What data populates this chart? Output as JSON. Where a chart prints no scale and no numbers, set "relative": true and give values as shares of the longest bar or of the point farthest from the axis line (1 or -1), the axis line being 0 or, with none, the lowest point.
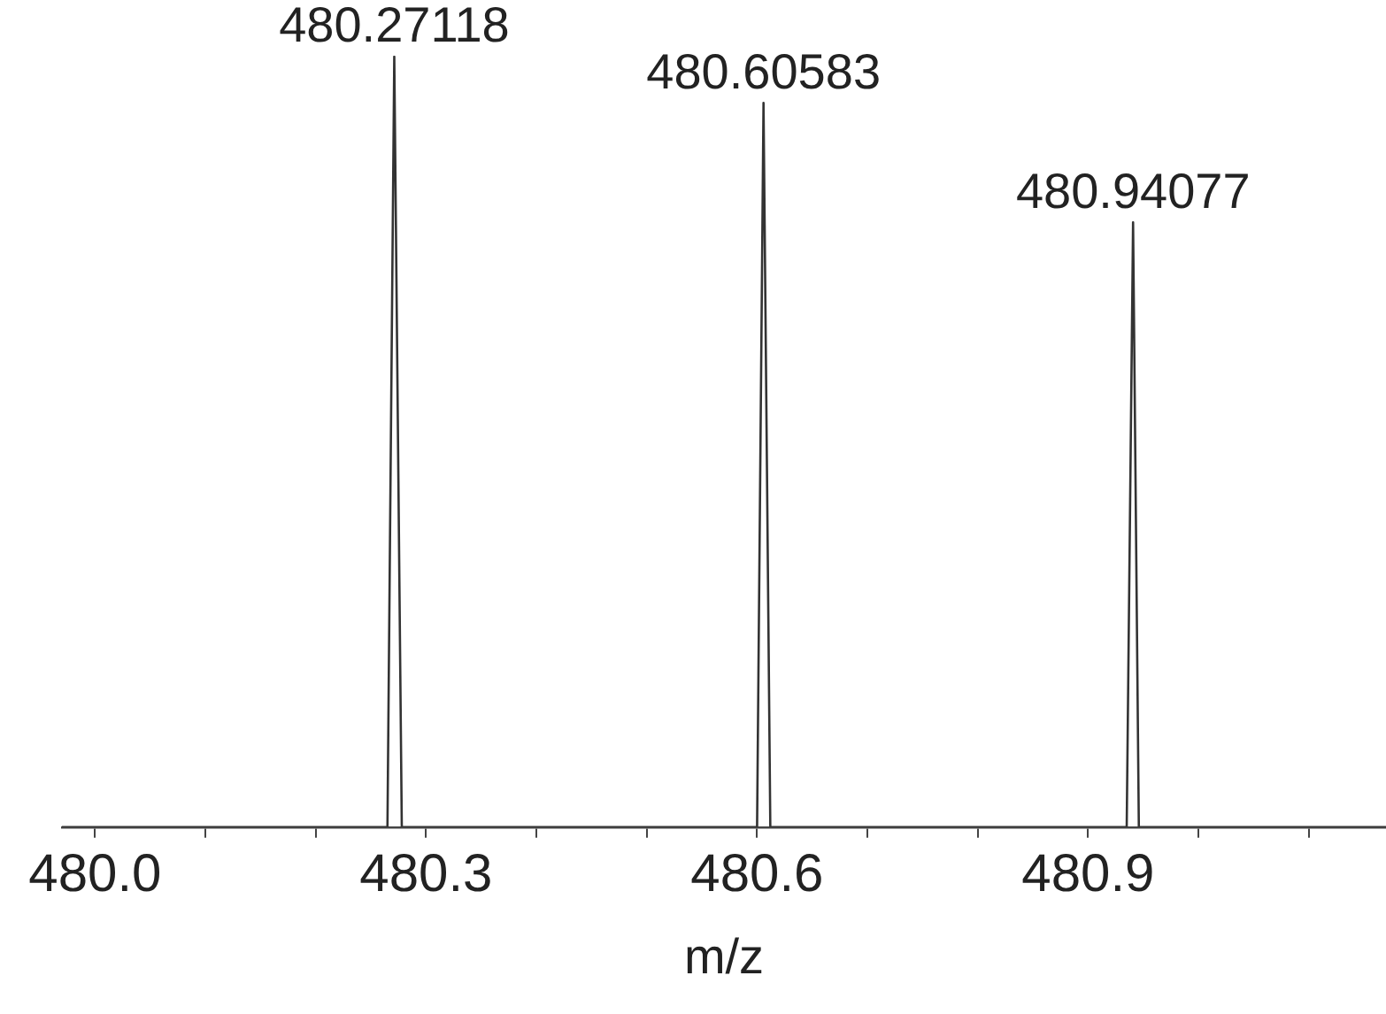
{
  "chart_data": {
    "type": "line",
    "relative": true,
    "xlabel": "m/z",
    "marker": "none",
    "grid": false,
    "legend": false,
    "tick_labels": "x",
    "x": [
      479.97,
      480.265,
      480.27118,
      480.278,
      480.6,
      480.60583,
      480.612,
      480.935,
      480.94077,
      480.946,
      481.17
    ],
    "series": [
      {
        "color": "#333333",
        "values": [
          0,
          0,
          1,
          0,
          0,
          0.94,
          0,
          0,
          0.785,
          0,
          0
        ]
      }
    ],
    "xlim": [
      479.97,
      481.17
    ],
    "xticks": [
      {
        "value": 480,
        "label": "480.0"
      },
      {
        "value": 480.1,
        "label": null
      },
      {
        "value": 480.2,
        "label": null
      },
      {
        "value": 480.3,
        "label": "480.3"
      },
      {
        "value": 480.4,
        "label": null
      },
      {
        "value": 480.5,
        "label": null
      },
      {
        "value": 480.6,
        "label": "480.6"
      },
      {
        "value": 480.7,
        "label": null
      },
      {
        "value": 480.8,
        "label": null
      },
      {
        "value": 480.9,
        "label": "480.9"
      },
      {
        "value": 481,
        "label": null
      },
      {
        "value": 481.1,
        "label": null
      }
    ],
    "annotations": [
      {
        "text": "480.27118",
        "x": 480.27118,
        "y": 1
      },
      {
        "text": "480.60583",
        "x": 480.60583,
        "y": 0.94
      },
      {
        "text": "480.94077",
        "x": 480.94077,
        "y": 0.785
      }
    ]
  }
}
